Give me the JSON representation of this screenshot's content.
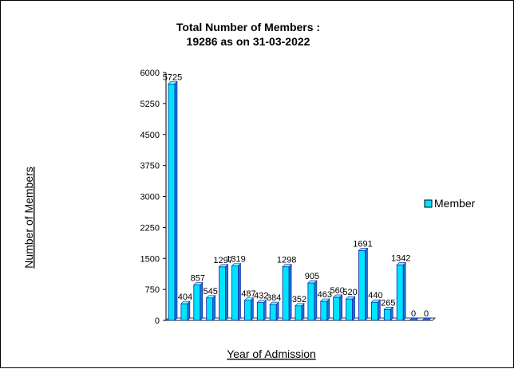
{
  "chart_data": {
    "type": "bar",
    "title_lines": [
      "Total Number of Members :",
      "19286 as on 31-03-2022"
    ],
    "xlabel": "Year of Admission",
    "ylabel": "Number of Members",
    "ylim": [
      0,
      6000
    ],
    "yticks": [
      "0",
      "750",
      "1500",
      "2250",
      "3000",
      "3750",
      "4500",
      "5250",
      "6000"
    ],
    "grid": false,
    "legend_position": "right",
    "series": [
      {
        "name": "Member",
        "color": "#00e5ff",
        "values": [
          5725,
          404,
          857,
          545,
          1297,
          1319,
          487,
          432,
          384,
          1298,
          352,
          905,
          463,
          560,
          520,
          1691,
          440,
          265,
          1342,
          0,
          0
        ],
        "labels": [
          "5725",
          "404",
          "857",
          "545",
          "1297",
          "1319",
          "487",
          "432",
          "384",
          "1298",
          "352",
          "905",
          "463",
          "560",
          "520",
          "1691",
          "440",
          "265",
          "1342",
          "0",
          "0"
        ]
      }
    ]
  }
}
